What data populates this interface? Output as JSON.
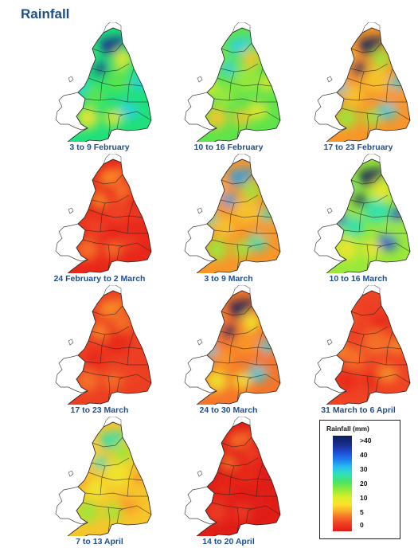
{
  "title": "Rainfall",
  "panels": [
    {
      "label": "3 to 9 February",
      "palette": [
        "#1fe07a",
        "#5ee44b",
        "#f0e52b",
        "#2fcfe6",
        "#1b2a8c"
      ]
    },
    {
      "label": "10 to 16 February",
      "palette": [
        "#5ee44b",
        "#9ae83b",
        "#f6c52b",
        "#f0e52b",
        "#2fcfe6"
      ]
    },
    {
      "label": "17 to 23 February",
      "palette": [
        "#f8962a",
        "#f6c52b",
        "#9ae83b",
        "#2fcfe6",
        "#0b1d5a"
      ]
    },
    {
      "label": "24 February to 2 March",
      "palette": [
        "#e8271b",
        "#ef4425",
        "#f5762a",
        "#ec3f22",
        "#f8962a"
      ]
    },
    {
      "label": "3 to 9 March",
      "palette": [
        "#f8962a",
        "#f6c52b",
        "#9ae83b",
        "#2fe0b6",
        "#2f9ce6"
      ]
    },
    {
      "label": "10 to 16 March",
      "palette": [
        "#9ae83b",
        "#2fe0b6",
        "#f0e52b",
        "#1e4fd8",
        "#0b1d5a"
      ]
    },
    {
      "label": "17 to 23 March",
      "palette": [
        "#ec3f22",
        "#e8271b",
        "#f5762a",
        "#ef4425",
        "#f8962a"
      ]
    },
    {
      "label": "24 to 30 March",
      "palette": [
        "#f5762a",
        "#f8962a",
        "#f0e52b",
        "#2fcfe6",
        "#0b1d5a"
      ]
    },
    {
      "label": "31 March to 6 April",
      "palette": [
        "#ef4425",
        "#f5762a",
        "#e8271b",
        "#f8962a",
        "#ec3f22"
      ]
    },
    {
      "label": "7 to 13 April",
      "palette": [
        "#f6c52b",
        "#f0e52b",
        "#9ae83b",
        "#f8962a",
        "#2fe0b6"
      ]
    },
    {
      "label": "14 to 20 April",
      "palette": [
        "#e01d17",
        "#e8271b",
        "#ec3f22",
        "#e01d17",
        "#f5762a"
      ]
    }
  ],
  "legend": {
    "title": "Rainfall (mm)",
    "ticks": [
      ">40",
      "40",
      "30",
      "20",
      "10",
      "5",
      "0"
    ]
  }
}
